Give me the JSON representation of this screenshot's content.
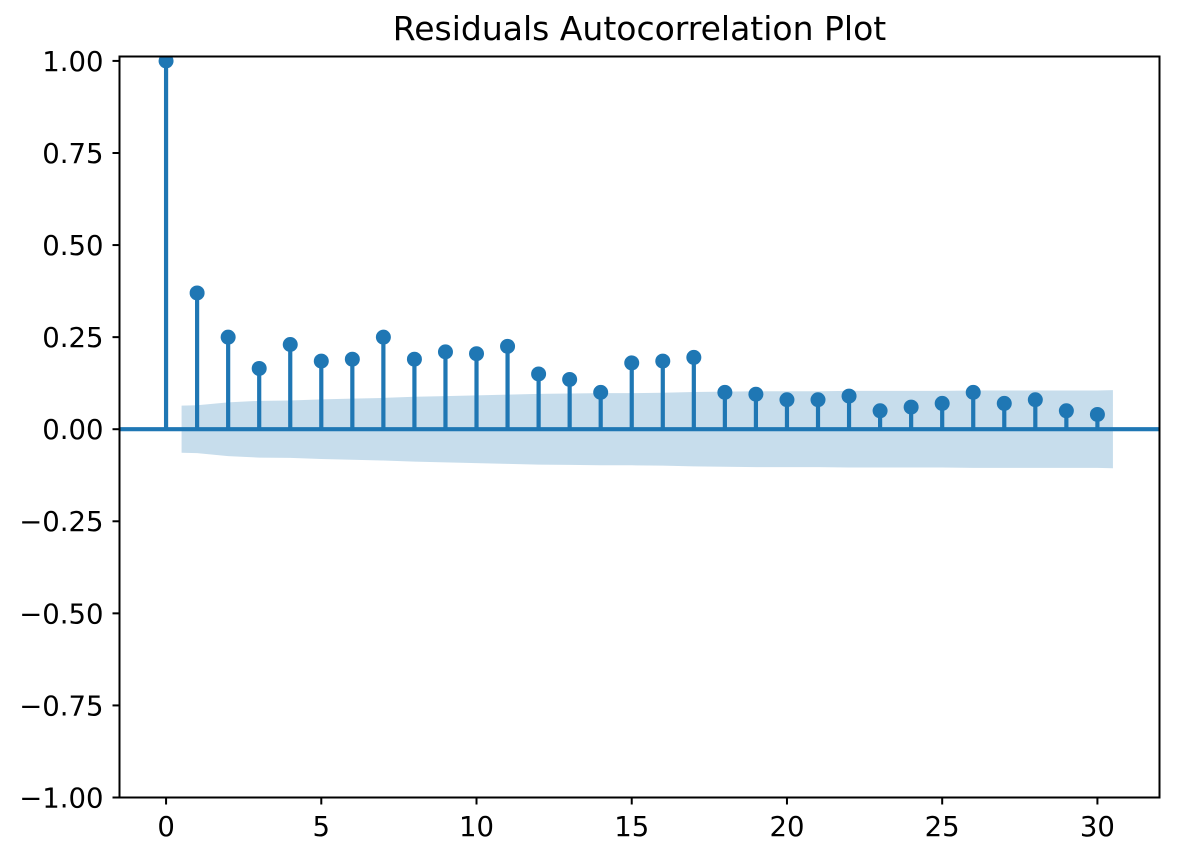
{
  "chart_data": {
    "type": "stem",
    "title": "Residuals Autocorrelation Plot",
    "xlabel": "",
    "ylabel": "",
    "grid": false,
    "legend": null,
    "xlim": [
      -1.5,
      32.0
    ],
    "ylim": [
      -1.0,
      1.012
    ],
    "x_tick_values": [
      0,
      5,
      10,
      15,
      20,
      25,
      30
    ],
    "x_tick_labels": [
      "0",
      "5",
      "10",
      "15",
      "20",
      "25",
      "30"
    ],
    "y_tick_values": [
      1.0,
      0.75,
      0.5,
      0.25,
      0.0,
      -0.25,
      -0.5,
      -0.75,
      -1.0
    ],
    "y_tick_labels": [
      "1.00",
      "0.75",
      "0.50",
      "0.25",
      "0.00",
      "−0.25",
      "−0.50",
      "−0.75",
      "−1.00"
    ],
    "zero_line_y": 0,
    "lags": [
      0,
      1,
      2,
      3,
      4,
      5,
      6,
      7,
      8,
      9,
      10,
      11,
      12,
      13,
      14,
      15,
      16,
      17,
      18,
      19,
      20,
      21,
      22,
      23,
      24,
      25,
      26,
      27,
      28,
      29,
      30
    ],
    "acf_values": [
      1.0,
      0.37,
      0.25,
      0.165,
      0.23,
      0.185,
      0.19,
      0.25,
      0.19,
      0.21,
      0.205,
      0.225,
      0.15,
      0.135,
      0.1,
      0.18,
      0.185,
      0.195,
      0.1,
      0.095,
      0.08,
      0.08,
      0.09,
      0.05,
      0.06,
      0.07,
      0.1,
      0.07,
      0.08,
      0.05,
      0.04
    ],
    "confidence_band": {
      "symmetric_about_zero": true,
      "x": [
        0.5,
        1,
        2,
        3,
        4,
        5,
        6,
        7,
        8,
        9,
        10,
        11,
        12,
        13,
        14,
        15,
        16,
        17,
        18,
        19,
        20,
        21,
        22,
        23,
        24,
        25,
        26,
        27,
        28,
        29,
        30,
        30.5
      ],
      "upper": [
        0.064,
        0.065,
        0.073,
        0.077,
        0.078,
        0.081,
        0.083,
        0.085,
        0.088,
        0.09,
        0.092,
        0.094,
        0.096,
        0.097,
        0.098,
        0.098,
        0.099,
        0.101,
        0.102,
        0.103,
        0.103,
        0.103,
        0.104,
        0.104,
        0.104,
        0.104,
        0.105,
        0.105,
        0.105,
        0.105,
        0.105,
        0.106
      ]
    },
    "colors": {
      "stem": "#1f77b4",
      "marker": "#1f77b4",
      "zero_line": "#1f77b4",
      "band_fill": "#1f77b4",
      "band_opacity": 0.25,
      "axes_frame": "#000000",
      "background": "#ffffff"
    }
  }
}
